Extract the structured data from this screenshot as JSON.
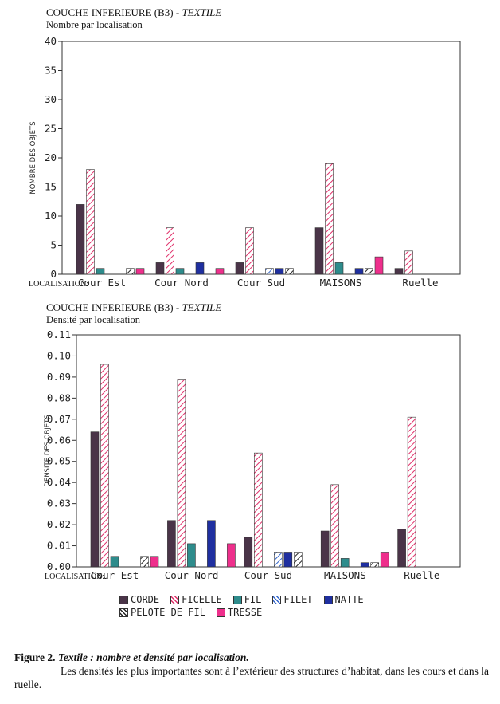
{
  "chart_data": [
    {
      "type": "bar",
      "title": "COUCHE INFERIEURE (B3) -",
      "title_italic": "TEXTILE",
      "subtitle": "Nombre par localisation",
      "ylabel": "NOMBRE DES OBJETS",
      "xlabel": "LOCALISATION:",
      "ylim": [
        0,
        40
      ],
      "yticks": [
        "0",
        "5",
        "10",
        "15",
        "20",
        "25",
        "30",
        "35",
        "40"
      ],
      "categories": [
        "Cour Est",
        "Cour Nord",
        "Cour Sud",
        "MAISONS",
        "Ruelle"
      ],
      "series": [
        {
          "name": "CORDE",
          "values": [
            12,
            2,
            2,
            8,
            1
          ]
        },
        {
          "name": "FICELLE",
          "values": [
            18,
            8,
            8,
            19,
            4
          ]
        },
        {
          "name": "FIL",
          "values": [
            1,
            1,
            0,
            2,
            0
          ]
        },
        {
          "name": "FILET",
          "values": [
            0,
            0,
            1,
            0,
            0
          ]
        },
        {
          "name": "NATTE",
          "values": [
            0,
            2,
            1,
            1,
            0
          ]
        },
        {
          "name": "PELOTE DE FIL",
          "values": [
            1,
            0,
            1,
            1,
            0
          ]
        },
        {
          "name": "TRESSE",
          "values": [
            1,
            1,
            0,
            3,
            0
          ]
        }
      ]
    },
    {
      "type": "bar",
      "title": "COUCHE INFERIEURE (B3) -",
      "title_italic": "TEXTILE",
      "subtitle": "Densité par localisation",
      "ylabel": "DENSITE DES OBJETS",
      "xlabel": "LOCALISATION:",
      "ylim": [
        0,
        0.11
      ],
      "yticks": [
        "0.00",
        "0.01",
        "0.02",
        "0.03",
        "0.04",
        "0.05",
        "0.06",
        "0.07",
        "0.08",
        "0.09",
        "0.10",
        "0.11"
      ],
      "categories": [
        "Cour Est",
        "Cour Nord",
        "Cour Sud",
        "MAISONS",
        "Ruelle"
      ],
      "series": [
        {
          "name": "CORDE",
          "values": [
            0.064,
            0.022,
            0.014,
            0.017,
            0.018
          ]
        },
        {
          "name": "FICELLE",
          "values": [
            0.096,
            0.089,
            0.054,
            0.039,
            0.071
          ]
        },
        {
          "name": "FIL",
          "values": [
            0.005,
            0.011,
            0,
            0.004,
            0
          ]
        },
        {
          "name": "FILET",
          "values": [
            0,
            0,
            0.007,
            0,
            0
          ]
        },
        {
          "name": "NATTE",
          "values": [
            0,
            0.022,
            0.007,
            0.002,
            0
          ]
        },
        {
          "name": "PELOTE DE FIL",
          "values": [
            0.005,
            0,
            0.007,
            0.002,
            0
          ]
        },
        {
          "name": "TRESSE",
          "values": [
            0.005,
            0.011,
            0,
            0.007,
            0
          ]
        }
      ]
    }
  ],
  "legend": {
    "row1": [
      "CORDE",
      "FICELLE",
      "FIL",
      "FILET",
      "NATTE"
    ],
    "row2": [
      "PELOTE DE FIL",
      "TRESSE"
    ]
  },
  "series_style": {
    "CORDE": {
      "fill": "#4a3448",
      "pattern": "solid"
    },
    "FICELLE": {
      "fill": "#e0306a",
      "pattern": "hatch"
    },
    "FIL": {
      "fill": "#2e8c8c",
      "pattern": "solid"
    },
    "FILET": {
      "fill": "#3366cc",
      "pattern": "hatch"
    },
    "NATTE": {
      "fill": "#1f2fa0",
      "pattern": "solid"
    },
    "PELOTE DE FIL": {
      "fill": "#222222",
      "pattern": "hatch"
    },
    "TRESSE": {
      "fill": "#ee2f8c",
      "pattern": "solid"
    }
  },
  "caption": {
    "label": "Figure 2.",
    "title": "Textile : nombre et densité par localisation.",
    "text": "Les densités les plus importantes sont à l’extérieur des structures d’habitat, dans les cours et dans la ruelle."
  }
}
